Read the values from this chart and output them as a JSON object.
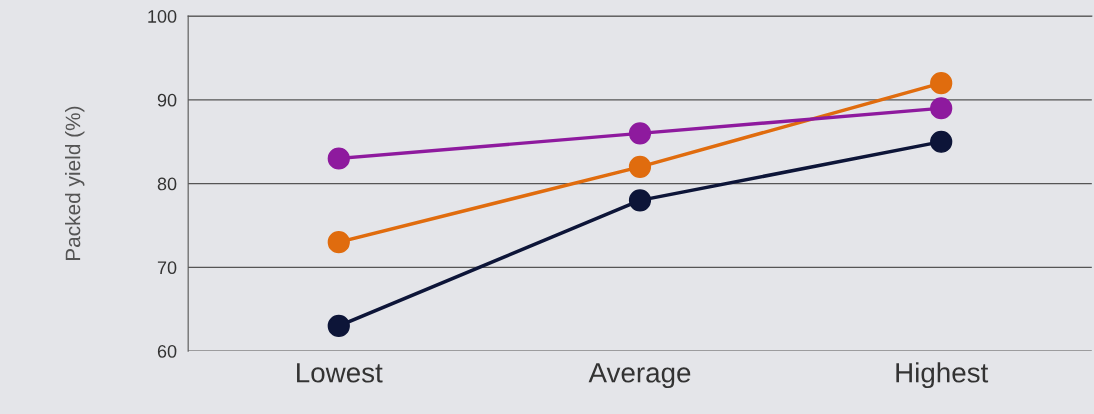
{
  "chart_data": {
    "type": "line",
    "ylabel": "Packed yield (%)",
    "categories": [
      "Lowest",
      "Average",
      "Highest"
    ],
    "series": [
      {
        "color": "#0d1538",
        "values": [
          63,
          78,
          85
        ]
      },
      {
        "color": "#e06c0e",
        "values": [
          73,
          82,
          92
        ]
      },
      {
        "color": "#8e1a9e",
        "values": [
          83,
          86,
          89
        ]
      }
    ],
    "ylim": [
      60,
      100
    ],
    "yticks": [
      60,
      70,
      80,
      90,
      100
    ],
    "grid": "y",
    "marker": "circle",
    "line_style": "solid"
  }
}
